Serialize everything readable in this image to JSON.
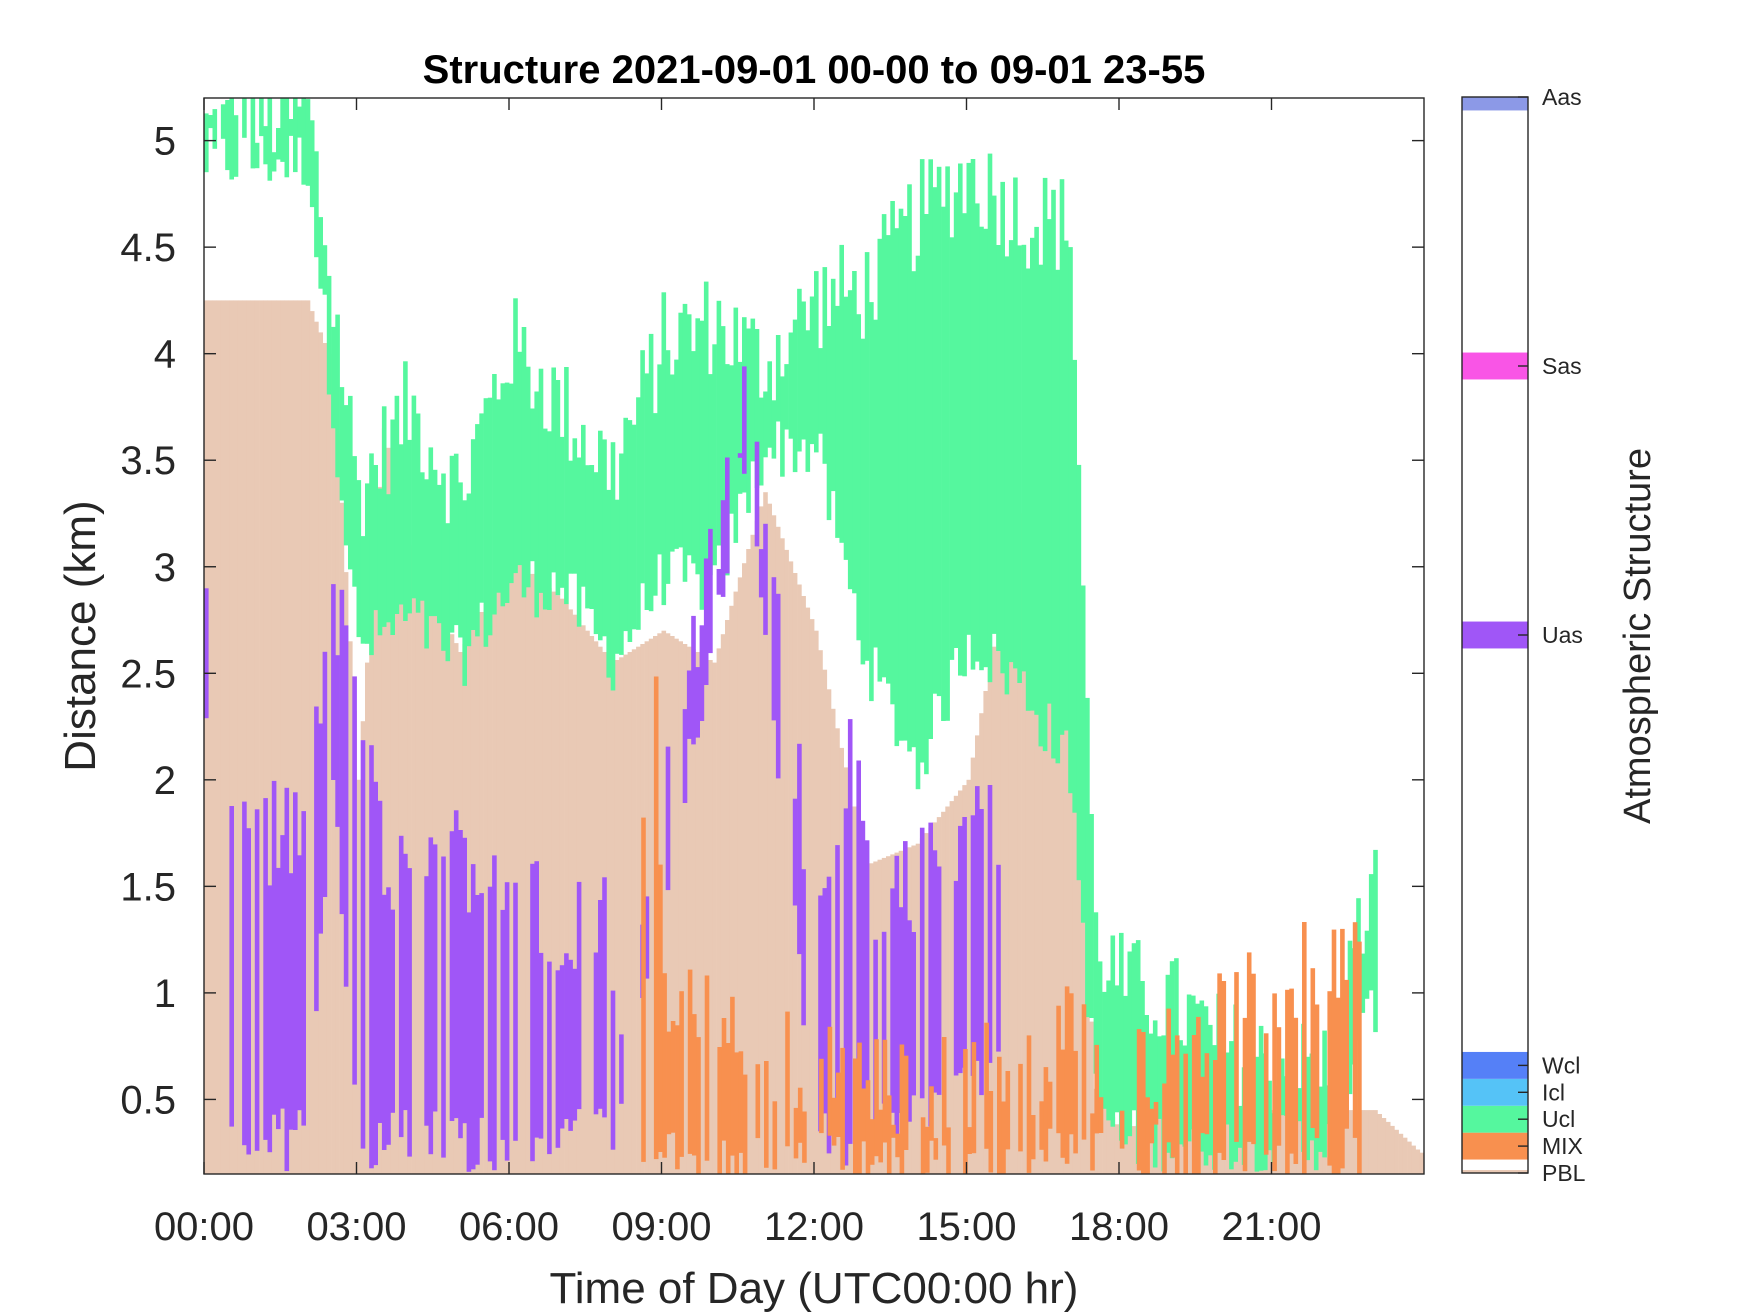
{
  "chart_data": {
    "type": "heatmap",
    "title": "Structure 2021-09-01 00-00 to 09-01 23-55",
    "xlabel": "Time of Day (UTC00:00 hr)",
    "ylabel": "Distance (km)",
    "xlim": [
      0,
      24
    ],
    "ylim": [
      0.15,
      5.2
    ],
    "x_ticks": [
      0,
      3,
      6,
      9,
      12,
      15,
      18,
      21
    ],
    "x_tick_labels": [
      "00:00",
      "03:00",
      "06:00",
      "09:00",
      "12:00",
      "15:00",
      "18:00",
      "21:00"
    ],
    "y_ticks": [
      0.5,
      1,
      1.5,
      2,
      2.5,
      3,
      3.5,
      4,
      4.5,
      5
    ],
    "y_tick_labels": [
      "0.5",
      "1",
      "1.5",
      "2",
      "2.5",
      "3",
      "3.5",
      "4",
      "4.5",
      "5"
    ],
    "grid": false,
    "colorbar": {
      "label": "Atmospheric Structure",
      "categories": [
        {
          "name": "PBL",
          "color": "#E9C9B5"
        },
        {
          "name": "MIX",
          "color": "#F8904F"
        },
        {
          "name": "Ucl",
          "color": "#55F79E"
        },
        {
          "name": "Icl",
          "color": "#55C3F7"
        },
        {
          "name": "Wcl",
          "color": "#5580F7"
        },
        {
          "name": "Uas",
          "color": "#A056F7"
        },
        {
          "name": "Sas",
          "color": "#F955E6"
        },
        {
          "name": "Aas",
          "color": "#8C99E7"
        }
      ]
    },
    "series": [
      {
        "name": "PBL",
        "color": "#E9C9B5",
        "x": [
          0,
          1,
          2,
          2.5,
          3,
          3.5,
          4,
          5,
          6,
          7,
          8,
          9,
          10,
          11,
          12,
          13,
          14,
          15,
          16,
          16.8,
          17.5,
          18,
          19,
          20,
          21,
          22,
          23,
          23.9
        ],
        "top": [
          4.25,
          4.25,
          4.25,
          3.95,
          2.0,
          3.65,
          3.1,
          2.6,
          3.05,
          2.85,
          2.55,
          2.7,
          2.55,
          3.35,
          2.7,
          1.6,
          1.7,
          2.0,
          3.25,
          3.2,
          0.55,
          0.35,
          0.45,
          0.45,
          0.45,
          0.45,
          0.45,
          0.25
        ],
        "bottom": 0.15
      },
      {
        "name": "Ucl",
        "color": "#55F79E",
        "x": [
          0,
          2,
          3,
          4,
          5,
          6,
          7,
          8,
          9,
          10,
          11,
          12,
          13,
          14,
          15,
          16,
          17,
          17.5,
          18,
          19,
          20,
          21,
          22,
          23
        ],
        "top": [
          5.05,
          5.15,
          3.35,
          3.75,
          3.35,
          4.05,
          3.75,
          3.45,
          4.05,
          4.15,
          3.95,
          4.25,
          4.3,
          4.65,
          4.85,
          4.65,
          4.6,
          1.25,
          1.05,
          0.95,
          0.75,
          0.65,
          0.65,
          1.55
        ],
        "bottom": [
          4.85,
          4.85,
          2.55,
          2.7,
          2.5,
          2.85,
          2.85,
          2.5,
          2.9,
          2.85,
          3.5,
          3.5,
          2.5,
          2.0,
          2.6,
          2.4,
          2.0,
          0.45,
          0.25,
          0.25,
          0.25,
          0.25,
          0.25,
          0.9
        ]
      },
      {
        "name": "Uas",
        "color": "#A056F7",
        "x": [
          0,
          0.5,
          1,
          1.5,
          2,
          2.5,
          3,
          3.5,
          4,
          4.5,
          5,
          6.8,
          7.5,
          7.9,
          8.2,
          10.6,
          12,
          12.7,
          13.1,
          15.6
        ],
        "top": [
          2.65,
          1.95,
          1.75,
          1.75,
          1.75,
          2.85,
          2.35,
          1.55,
          1.65,
          1.65,
          1.65,
          1.35,
          1.35,
          1.35,
          0.9,
          3.75,
          1.4,
          2.25,
          1.35,
          1.85
        ],
        "bottom": [
          2.15,
          0.25,
          0.25,
          0.25,
          0.25,
          1.95,
          0.25,
          0.25,
          0.25,
          0.25,
          0.25,
          0.25,
          0.35,
          0.35,
          0.35,
          3.45,
          0.35,
          0.25,
          0.25,
          0.65
        ]
      },
      {
        "name": "MIX",
        "color": "#F8904F",
        "x": [
          8.6,
          8.8,
          9.0,
          10.5,
          13.2,
          14.3,
          15.5,
          16.2,
          17.0,
          17.5,
          22.7
        ],
        "top": [
          1.65,
          2.85,
          1.05,
          0.75,
          0.55,
          0.55,
          0.65,
          0.65,
          0.95,
          0.55,
          1.25
        ],
        "bottom": [
          0.15,
          0.15,
          0.15,
          0.15,
          0.15,
          0.15,
          0.15,
          0.15,
          0.2,
          0.2,
          0.15
        ]
      }
    ]
  }
}
